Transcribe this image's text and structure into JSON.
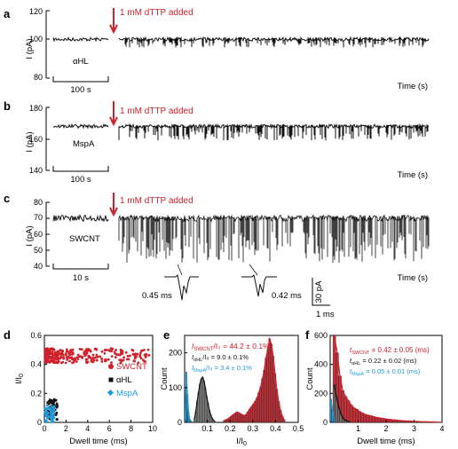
{
  "colors": {
    "red": "#d0202a",
    "black": "#111111",
    "blue": "#1f9ad6",
    "arrow": "#d0202a"
  },
  "chart_data": [
    {
      "panel": "a",
      "type": "line",
      "title": "",
      "pore_label": "αHL",
      "annotation": "1 mM dTTP added",
      "ylabel": "I (pA)",
      "xlabel": "Time (s)",
      "yticks": [
        80,
        100,
        120
      ],
      "ylim": [
        80,
        120
      ],
      "scalebar": "100 s",
      "baseline_pA": 103,
      "blockade_min_pA": 98
    },
    {
      "panel": "b",
      "type": "line",
      "title": "",
      "pore_label": "MspA",
      "annotation": "1 mM dTTP added",
      "ylabel": "I (pA)",
      "xlabel": "Time (s)",
      "yticks": [
        140,
        160,
        180
      ],
      "ylim": [
        140,
        180
      ],
      "scalebar": "100 s",
      "baseline_pA": 168,
      "blockade_min_pA": 159
    },
    {
      "panel": "c",
      "type": "line",
      "title": "",
      "pore_label": "SWCNT",
      "annotation": "1 mM dTTP added",
      "ylabel": "I (pA)",
      "xlabel": "Time (s)",
      "yticks": [
        40,
        50,
        60,
        70,
        80
      ],
      "ylim": [
        40,
        80
      ],
      "scalebar": "10 s",
      "baseline_pA": 70,
      "blockade_min_pA": 42,
      "insets": [
        {
          "label": "0.45 ms"
        },
        {
          "label": "0.42 ms"
        }
      ],
      "inset_scale": {
        "current": "30 pA",
        "time": "1 ms"
      }
    },
    {
      "panel": "d",
      "type": "scatter",
      "xlabel": "Dwell time (ms)",
      "ylabel": "I/I₀",
      "xlim": [
        0,
        10
      ],
      "ylim": [
        0,
        0.6
      ],
      "xticks": [
        0,
        2,
        4,
        6,
        8,
        10
      ],
      "yticks": [
        0,
        0.2,
        0.4,
        0.6
      ],
      "series": [
        {
          "name": "SWCNT",
          "marker": "circle",
          "x_range": [
            0.1,
            9.7
          ],
          "y_center": 0.46
        },
        {
          "name": "αHL",
          "marker": "square",
          "x_range": [
            0.3,
            1.2
          ],
          "y_center": 0.09
        },
        {
          "name": "MspA",
          "marker": "diamond",
          "x_range": [
            0.05,
            0.9
          ],
          "y_center": 0.034
        }
      ]
    },
    {
      "panel": "e",
      "type": "bar",
      "xlabel": "I/I₀",
      "ylabel": "Count",
      "xlim": [
        0,
        0.5
      ],
      "ylim": [
        0,
        250
      ],
      "xticks": [
        0.1,
        0.2,
        0.3,
        0.4,
        0.5
      ],
      "yticks": [
        0,
        100,
        200
      ],
      "fit_labels": [
        {
          "subscript": "SWCNT",
          "value": "/I₀ = 44.2 ± 0.1%"
        },
        {
          "subscript": "αHL",
          "value": "/I₀ = 9.0 ± 0.1%"
        },
        {
          "subscript": "MspA",
          "value": "/I₀ = 3.4 ± 0.1%"
        }
      ],
      "series": [
        {
          "name": "SWCNT",
          "bin_start": 0.17,
          "bin_width": 0.008,
          "values": [
            5,
            8,
            10,
            14,
            18,
            22,
            26,
            30,
            28,
            25,
            22,
            20,
            22,
            30,
            38,
            45,
            52,
            60,
            70,
            85,
            100,
            125,
            150,
            185,
            210,
            240,
            225,
            190,
            140,
            95,
            60,
            35,
            18,
            8
          ]
        },
        {
          "name": "αHL",
          "bin_start": 0.04,
          "bin_width": 0.006,
          "values": [
            10,
            30,
            60,
            85,
            110,
            125,
            130,
            120,
            100,
            75,
            55,
            35,
            22,
            12,
            6,
            3
          ]
        },
        {
          "name": "MspA",
          "bin_start": 0.0,
          "bin_width": 0.005,
          "values": [
            10,
            145,
            80,
            30,
            10,
            3
          ]
        }
      ]
    },
    {
      "panel": "f",
      "type": "bar",
      "xlabel": "Dwell time (ms)",
      "ylabel": "Count",
      "xlim": [
        0,
        4
      ],
      "ylim": [
        0,
        600
      ],
      "xticks": [
        1,
        2,
        3,
        4
      ],
      "yticks": [
        0,
        200,
        400,
        600
      ],
      "fit_labels": [
        {
          "subscript": "SWCNT",
          "value": " = 0.42 ± 0.05 (ms)"
        },
        {
          "subscript": "αHL",
          "value": " = 0.22 ± 0.02 (ms)"
        },
        {
          "subscript": "MspA",
          "value": " = 0.05 ± 0.01 (ms)"
        }
      ],
      "series": [
        {
          "name": "SWCNT",
          "bin_start": 0.1,
          "bin_width": 0.1,
          "values": [
            600,
            480,
            320,
            220,
            180,
            150,
            120,
            100,
            90,
            75,
            65,
            55,
            50,
            45,
            40,
            35,
            32,
            28,
            25,
            22,
            20,
            18,
            16,
            14,
            12,
            11,
            10,
            9,
            8,
            7,
            6,
            5,
            5,
            4,
            4,
            3,
            3,
            2,
            2
          ]
        },
        {
          "name": "αHL",
          "bin_start": 0.1,
          "bin_width": 0.08,
          "values": [
            260,
            180,
            110,
            60,
            30,
            15,
            8,
            4
          ]
        },
        {
          "name": "MspA",
          "bin_start": 0.0,
          "bin_width": 0.05,
          "values": [
            160,
            90,
            30,
            10
          ]
        }
      ]
    }
  ]
}
